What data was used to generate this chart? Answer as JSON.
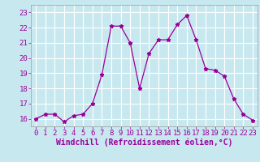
{
  "x": [
    0,
    1,
    2,
    3,
    4,
    5,
    6,
    7,
    8,
    9,
    10,
    11,
    12,
    13,
    14,
    15,
    16,
    17,
    18,
    19,
    20,
    21,
    22,
    23
  ],
  "y": [
    16.0,
    16.3,
    16.3,
    15.8,
    16.2,
    16.3,
    17.0,
    18.9,
    22.1,
    22.1,
    21.0,
    18.0,
    20.3,
    21.2,
    21.2,
    22.2,
    22.8,
    21.2,
    19.3,
    19.2,
    18.8,
    17.3,
    16.3,
    15.9
  ],
  "line_color": "#990099",
  "marker": "*",
  "marker_size": 3.5,
  "bg_color": "#c8e8f0",
  "grid_color": "#ffffff",
  "xlabel": "Windchill (Refroidissement éolien,°C)",
  "xlabel_fontsize": 7,
  "tick_color": "#990099",
  "tick_fontsize": 6.5,
  "xlim": [
    -0.5,
    23.5
  ],
  "ylim": [
    15.5,
    23.5
  ],
  "yticks": [
    16,
    17,
    18,
    19,
    20,
    21,
    22,
    23
  ],
  "xticks": [
    0,
    1,
    2,
    3,
    4,
    5,
    6,
    7,
    8,
    9,
    10,
    11,
    12,
    13,
    14,
    15,
    16,
    17,
    18,
    19,
    20,
    21,
    22,
    23
  ]
}
